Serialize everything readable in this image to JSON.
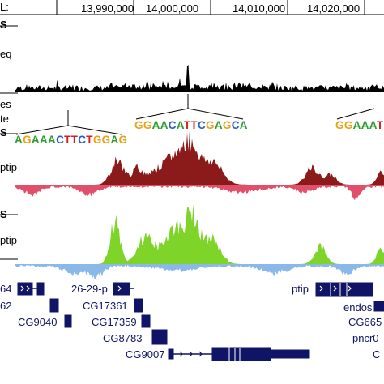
{
  "ruler": {
    "left_label": "L:",
    "ticks": [
      "13,990,000",
      "14,000,000",
      "14,010,000",
      "14,020,000"
    ]
  },
  "track_labels": {
    "t1": "S",
    "t2": "eq",
    "t3": "es",
    "t4": "te",
    "t5": "S",
    "t6": "ptip",
    "t7": "S",
    "t8": "ptip"
  },
  "motifs": [
    {
      "seq": "AGAAACTTCTGGAG"
    },
    {
      "seq": "GGAACATTCGAGCA"
    },
    {
      "seq": "GGAAAT"
    }
  ],
  "base_colors": {
    "A": "#2e9e2e",
    "G": "#e8a317",
    "C": "#2a5fc9",
    "T": "#d42020"
  },
  "track_colors": {
    "signal": "#000000",
    "ptip1_pos": "#8b1a1a",
    "ptip1_neg": "#e0506a",
    "ptip2_pos": "#7fd42a",
    "ptip2_neg": "#8ab8e8",
    "gene": "#101466"
  },
  "genes": {
    "g1": "64",
    "g2": "62",
    "g3": "26-29-p",
    "g4": "CG17361",
    "g5": "CG9040",
    "g6": "CG17359",
    "g7": "CG8783",
    "g8": "CG9007",
    "g9": "ptip",
    "g10": "endos",
    "g11": "CG665",
    "g12": "pncr0",
    "g13": "C"
  }
}
